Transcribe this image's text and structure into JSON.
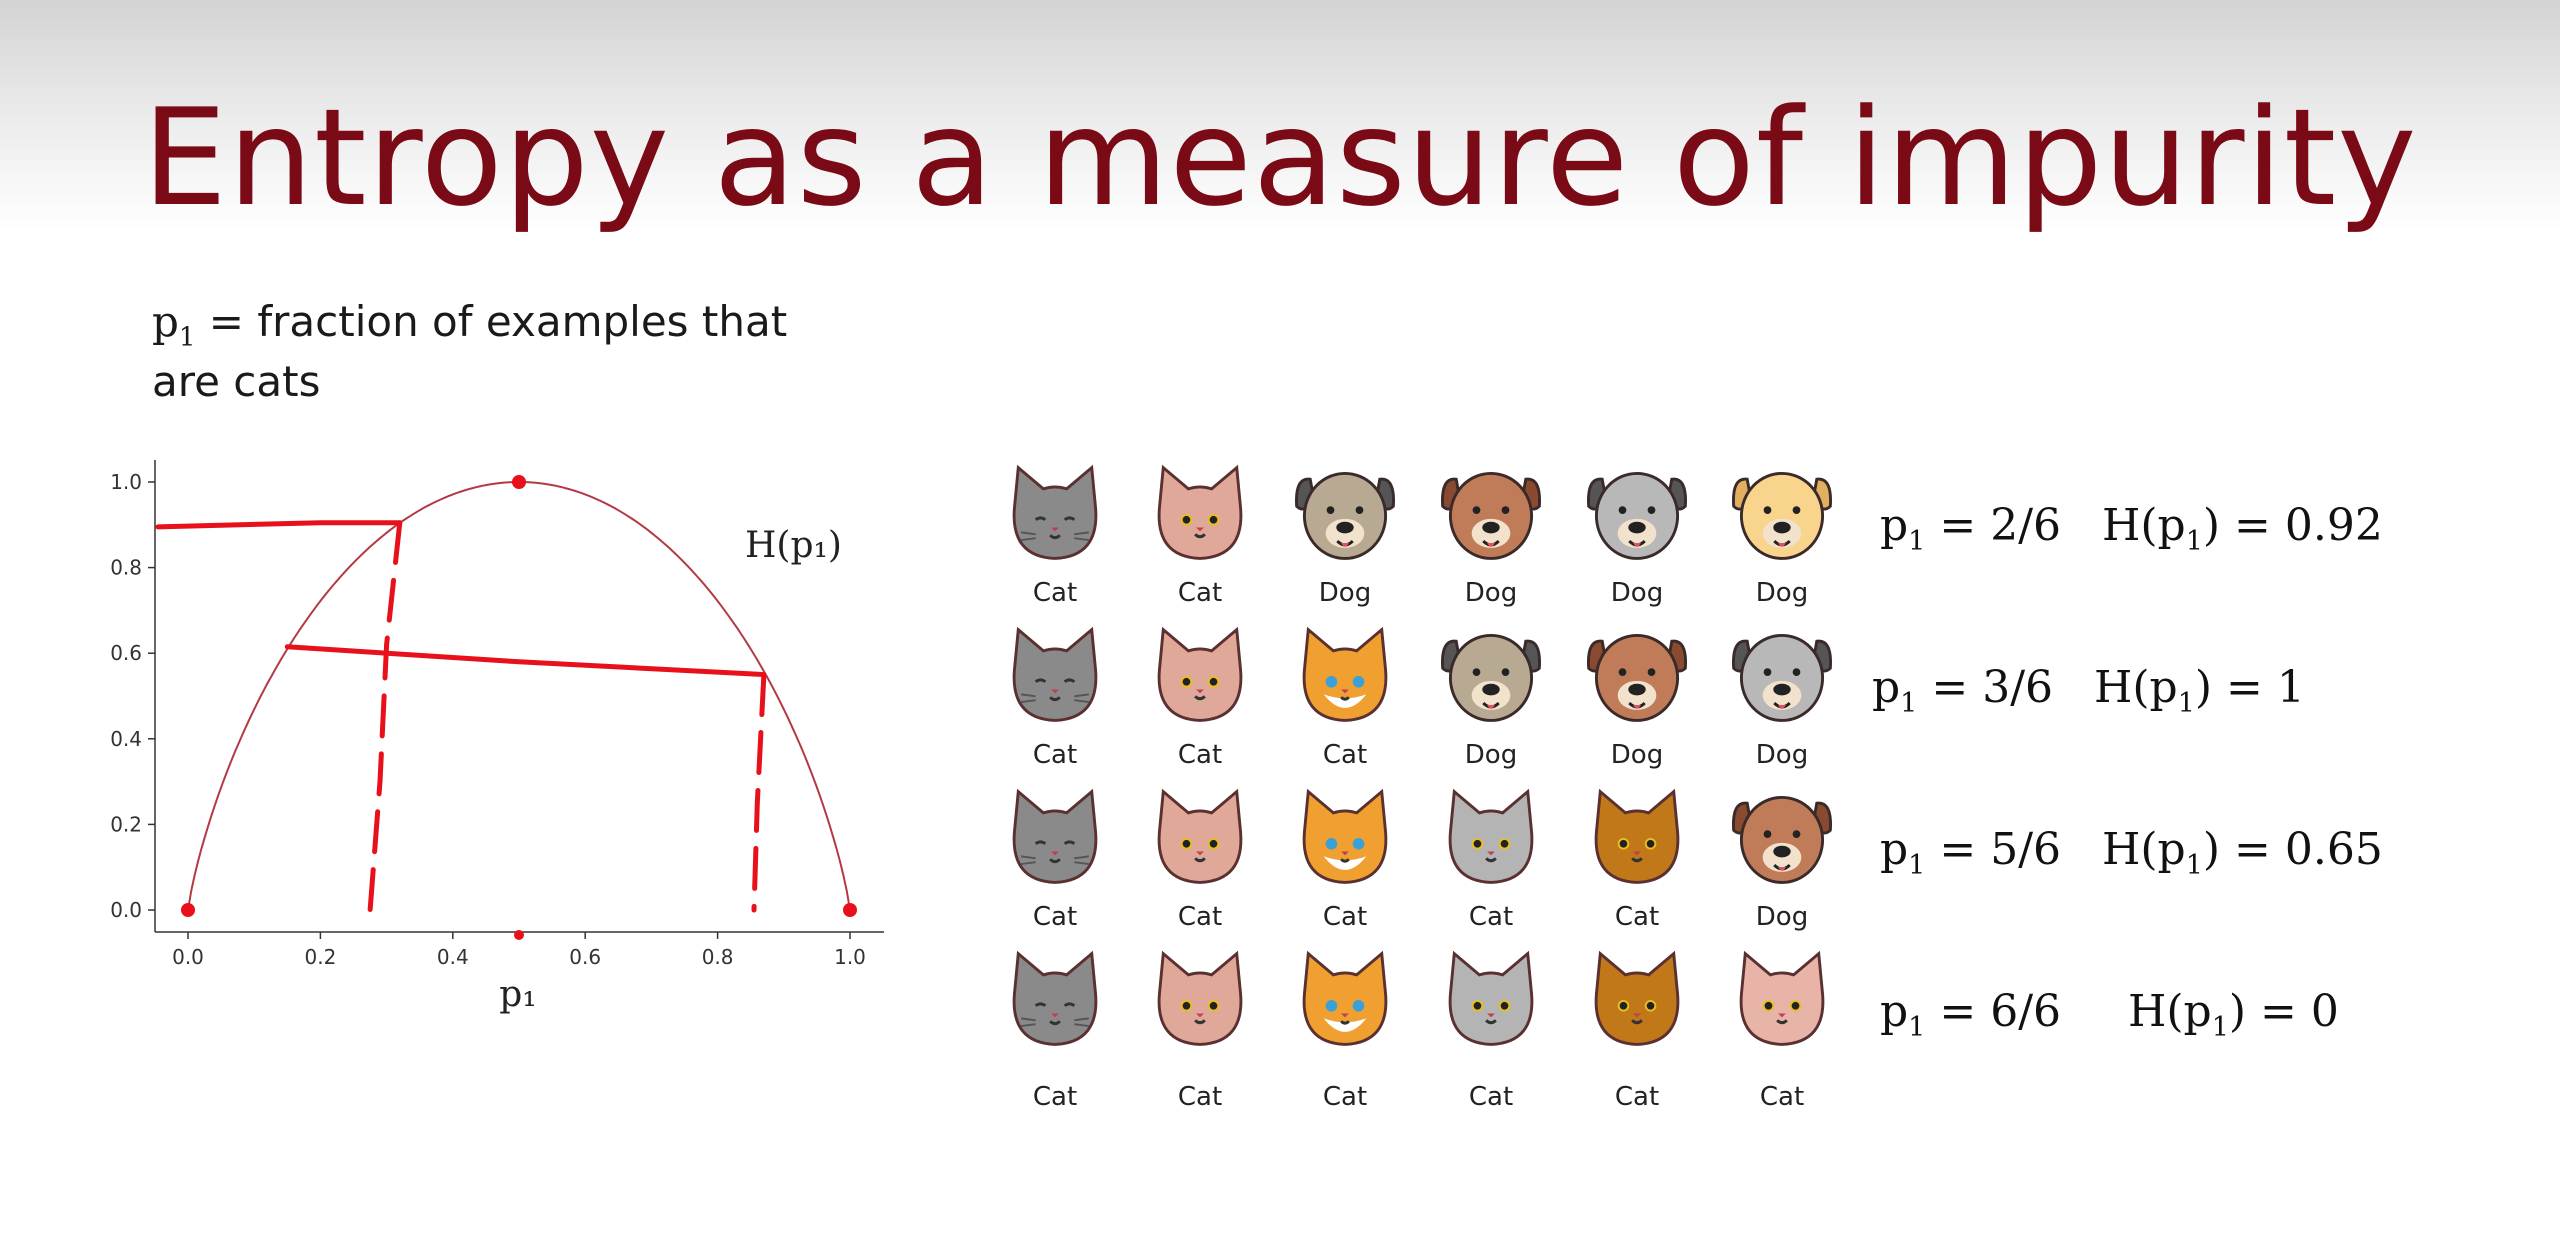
{
  "slide": {
    "title": "Entropy as a measure of impurity",
    "definition_line1": "fraction of examples that",
    "definition_line2": "are cats",
    "symbol": "p",
    "subscript": "1",
    "equals": "="
  },
  "chart_data": {
    "type": "line",
    "series": [
      {
        "name": "",
        "x": [
          0.0,
          0.05,
          0.1,
          0.15,
          0.2,
          0.25,
          0.3,
          0.35,
          0.4,
          0.45,
          0.5,
          0.55,
          0.6,
          0.65,
          0.7,
          0.75,
          0.8,
          0.85,
          0.9,
          0.95,
          1.0
        ],
        "y": [
          0.0,
          0.286,
          0.469,
          0.61,
          0.722,
          0.811,
          0.881,
          0.934,
          0.971,
          0.993,
          1.0,
          0.993,
          0.971,
          0.934,
          0.881,
          0.811,
          0.722,
          0.61,
          0.469,
          0.286,
          0.0
        ]
      }
    ],
    "curve_label": "H(p₁)",
    "xlabel": "p₁",
    "ylabel": "",
    "xlim": [
      0.0,
      1.0
    ],
    "ylim": [
      0.0,
      1.0
    ],
    "xticks": [
      "0.0",
      "0.2",
      "0.4",
      "0.6",
      "0.8",
      "1.0"
    ],
    "yticks": [
      "0.0",
      "0.2",
      "0.4",
      "0.6",
      "0.8",
      "1.0"
    ],
    "grid": false,
    "annotation_color": "#e8101a",
    "curve_color": "#b33a45"
  },
  "rows": [
    {
      "p_text": "2/6",
      "h_text": "H(p",
      "h_value": ") = 0.92",
      "animals": [
        {
          "label": "Cat",
          "kind": "cat-grey"
        },
        {
          "label": "Cat",
          "kind": "cat-pink"
        },
        {
          "label": "Dog",
          "kind": "dog-pug"
        },
        {
          "label": "Dog",
          "kind": "dog-brown"
        },
        {
          "label": "Dog",
          "kind": "dog-grey"
        },
        {
          "label": "Dog",
          "kind": "dog-yellow"
        }
      ]
    },
    {
      "p_text": "3/6",
      "h_text": "H(p",
      "h_value": ") = 1",
      "animals": [
        {
          "label": "Cat",
          "kind": "cat-grey"
        },
        {
          "label": "Cat",
          "kind": "cat-pink"
        },
        {
          "label": "Cat",
          "kind": "cat-orange"
        },
        {
          "label": "Dog",
          "kind": "dog-pug"
        },
        {
          "label": "Dog",
          "kind": "dog-brown"
        },
        {
          "label": "Dog",
          "kind": "dog-grey"
        }
      ]
    },
    {
      "p_text": "5/6",
      "h_text": "H(p",
      "h_value": ") = 0.65",
      "animals": [
        {
          "label": "Cat",
          "kind": "cat-grey"
        },
        {
          "label": "Cat",
          "kind": "cat-pink"
        },
        {
          "label": "Cat",
          "kind": "cat-orange"
        },
        {
          "label": "Cat",
          "kind": "cat-silver"
        },
        {
          "label": "Cat",
          "kind": "cat-tabby"
        },
        {
          "label": "Dog",
          "kind": "dog-brown"
        }
      ]
    },
    {
      "p_text": "6/6",
      "h_text": "H(p",
      "h_value": ") = 0",
      "animals": [
        {
          "label": "Cat",
          "kind": "cat-grey"
        },
        {
          "label": "Cat",
          "kind": "cat-pink"
        },
        {
          "label": "Cat",
          "kind": "cat-orange"
        },
        {
          "label": "Cat",
          "kind": "cat-silver"
        },
        {
          "label": "Cat",
          "kind": "cat-tabby"
        },
        {
          "label": "Cat",
          "kind": "cat-pinkish"
        }
      ]
    }
  ],
  "colors": {
    "title": "#7a0a15",
    "cat-grey": "#8a8a8a",
    "cat-pink": "#e0a898",
    "cat-orange": "#f0a030",
    "cat-silver": "#b4b4b4",
    "cat-tabby": "#c07818",
    "cat-pinkish": "#e8b4a8",
    "dog-pug": "#b8aa92",
    "dog-brown": "#c07c58",
    "dog-grey": "#b8b8b8",
    "dog-yellow": "#f8d48c"
  }
}
